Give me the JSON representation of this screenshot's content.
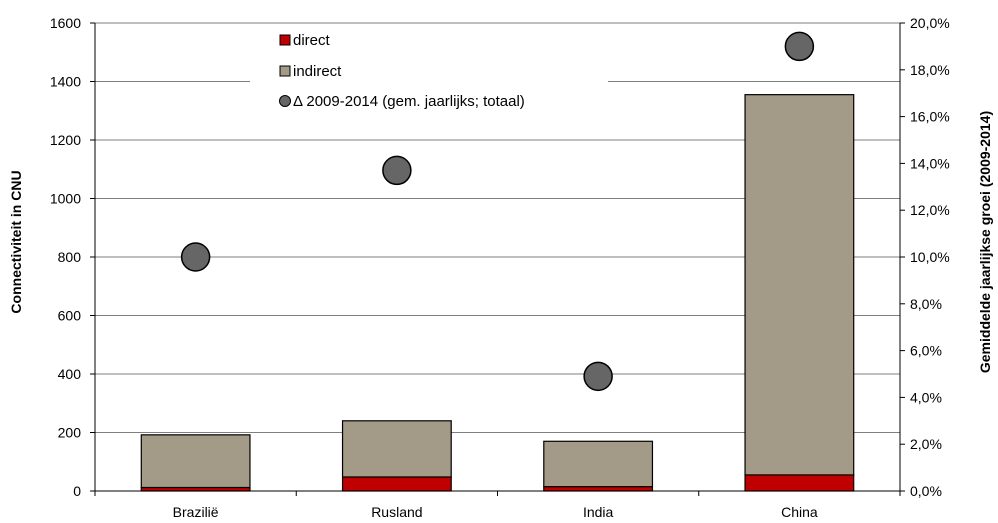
{
  "chart_data": {
    "type": "bar",
    "stacked": true,
    "categories": [
      "Brazilië",
      "Rusland",
      "India",
      "China"
    ],
    "series": [
      {
        "name": "direct",
        "axis": "left",
        "color": "#c00000",
        "values": [
          12,
          48,
          15,
          55
        ]
      },
      {
        "name": "indirect",
        "axis": "left",
        "color": "#a49a88",
        "values": [
          180,
          192,
          155,
          1300
        ]
      },
      {
        "name": "Δ 2009-2014 (gem. jaarlijks; totaal)",
        "type": "scatter",
        "axis": "right",
        "color": "#666666",
        "values": [
          10.0,
          13.7,
          4.9,
          19.0
        ]
      }
    ],
    "ylabel": "Connectiviteit in CNU",
    "y2label": "Gemiddelde jaarlijkse groei (2009-2014)",
    "ylim": [
      0,
      1600
    ],
    "y2lim": [
      0,
      20
    ],
    "y_ticks": [
      "0",
      "200",
      "400",
      "600",
      "800",
      "1000",
      "1200",
      "1400",
      "1600"
    ],
    "y2_ticks": [
      "0,0%",
      "2,0%",
      "4,0%",
      "6,0%",
      "8,0%",
      "10,0%",
      "12,0%",
      "14,0%",
      "16,0%",
      "18,0%",
      "20,0%"
    ],
    "grid": "horizontal",
    "legend_position": "top-center"
  }
}
